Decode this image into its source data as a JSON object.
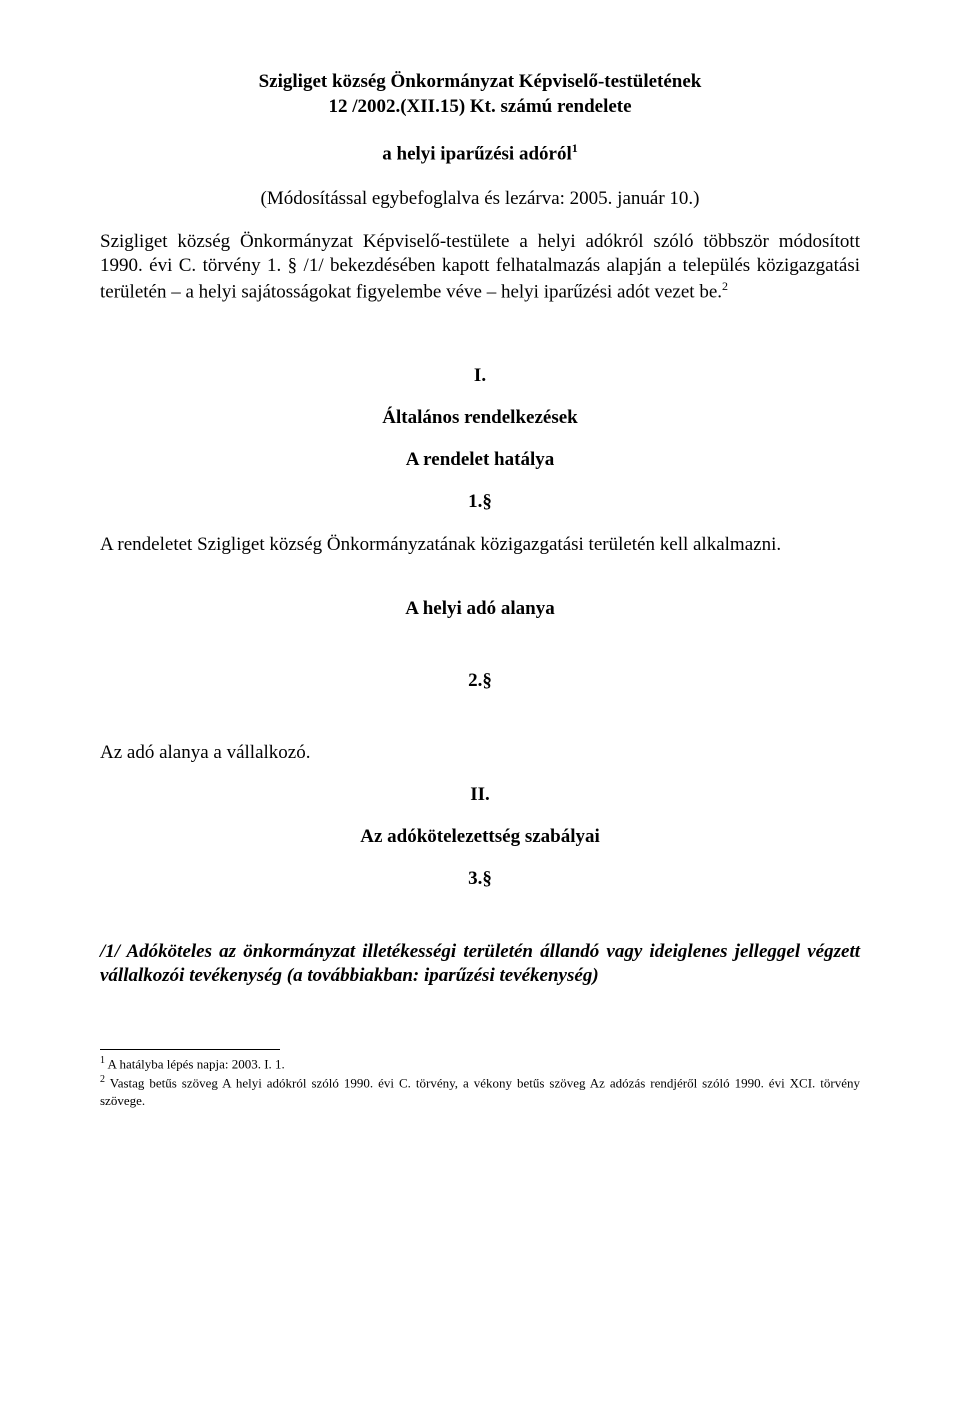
{
  "title": {
    "line1": "Szigliget község Önkormányzat Képviselő-testületének",
    "line2": "12 /2002.(XII.15) Kt. számú rendelete"
  },
  "subtitle": "a helyi iparűzési adóról",
  "subtitle_sup": "1",
  "closure": "(Módosítással egybefoglalva és lezárva: 2005. január 10.)",
  "preamble": "Szigliget község Önkormányzat Képviselő-testülete a helyi adókról szóló többször módosított 1990. évi C. törvény 1. § /1/ bekezdésében kapott felhatalmazás alapján a település közigazgatási területén – a helyi sajátosságokat figyelembe véve – helyi iparűzési adót vezet be.",
  "preamble_sup": "2",
  "sections": {
    "roman1": "I.",
    "general_heading": "Általános rendelkezések",
    "scope_heading": "A rendelet hatálya",
    "para1_num": "1.§",
    "para1_text": "A rendeletet Szigliget község Önkormányzatának közigazgatási területén kell alkalmazni.",
    "subject_heading": "A helyi adó alanya",
    "para2_num": "2.§",
    "para2_text": "Az adó alanya a vállalkozó.",
    "roman2": "II.",
    "rules_heading": "Az adókötelezettség szabályai",
    "para3_num": "3.§",
    "para3_text": "/1/ Adóköteles az önkormányzat illetékességi területén állandó vagy ideiglenes jelleggel végzett vállalkozói tevékenység (a továbbiakban: iparűzési tevékenység)"
  },
  "footnotes": {
    "fn1_num": "1",
    "fn1_text": " A hatályba lépés napja: 2003. I. 1.",
    "fn2_num": "2",
    "fn2_text": " Vastag betűs szöveg A helyi adókról szóló 1990. évi C. törvény, a vékony betűs szöveg Az adózás rendjéről szóló 1990. évi XCI. törvény szövege."
  },
  "colors": {
    "background": "#ffffff",
    "text": "#000000"
  },
  "fonts": {
    "family": "Times New Roman",
    "body_size_pt": 14,
    "footnote_size_pt": 10
  }
}
